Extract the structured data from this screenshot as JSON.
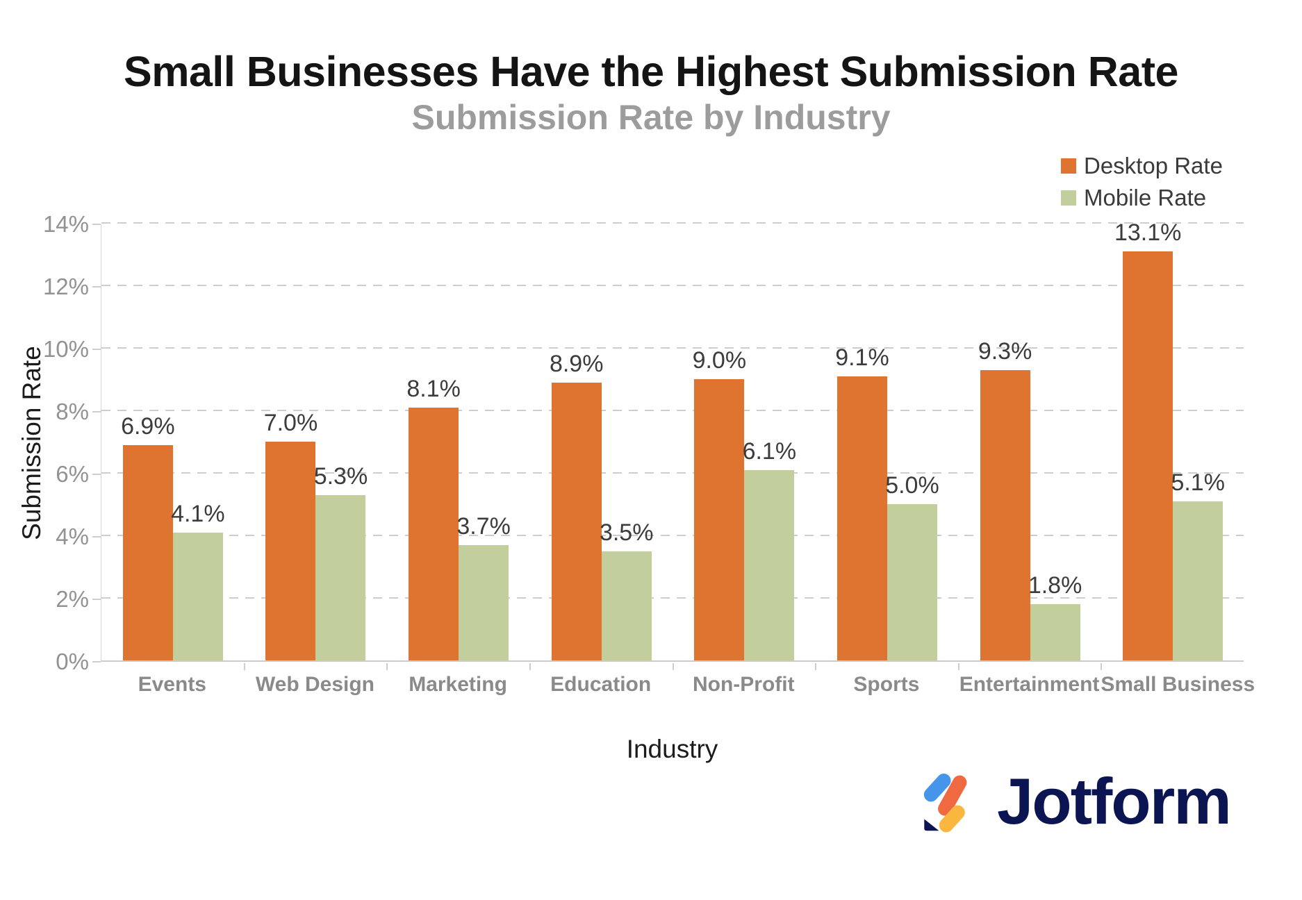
{
  "header": {
    "title": "Small Businesses Have the Highest Submission Rate",
    "subtitle": "Submission Rate by Industry"
  },
  "legend": [
    {
      "label": "Desktop Rate",
      "color": "#de7430"
    },
    {
      "label": "Mobile Rate",
      "color": "#c2cf9d"
    }
  ],
  "chart_data": {
    "type": "bar",
    "title": "Small Businesses Have the Highest Submission Rate",
    "subtitle": "Submission Rate by Industry",
    "xlabel": "Industry",
    "ylabel": "Submission Rate",
    "ylim": [
      0,
      14
    ],
    "ytick_step": 2,
    "ytick_suffix": "%",
    "grid": "horizontal-dashed",
    "legend_position": "top-right",
    "categories": [
      "Events",
      "Web Design",
      "Marketing",
      "Education",
      "Non-Profit",
      "Sports",
      "Entertainment",
      "Small Business"
    ],
    "series": [
      {
        "name": "Desktop Rate",
        "color": "#de7430",
        "values": [
          6.9,
          7.0,
          8.1,
          8.9,
          9.0,
          9.1,
          9.3,
          13.1
        ],
        "value_labels": [
          "6.9%",
          "7.0%",
          "8.1%",
          "8.9%",
          "9.0%",
          "9.1%",
          "9.3%",
          "13.1%"
        ]
      },
      {
        "name": "Mobile Rate",
        "color": "#c2cf9d",
        "values": [
          4.1,
          5.3,
          3.7,
          3.5,
          6.1,
          5.0,
          1.8,
          5.1
        ],
        "value_labels": [
          "4.1%",
          "5.3%",
          "3.7%",
          "3.5%",
          "6.1%",
          "5.0%",
          "1.8%",
          "5.1%"
        ]
      }
    ]
  },
  "footer": {
    "brand": "Jotform",
    "logo_colors": {
      "blue": "#4596eb",
      "orange": "#ef6a40",
      "yellow": "#f9b73f",
      "navy": "#0a1551"
    }
  }
}
